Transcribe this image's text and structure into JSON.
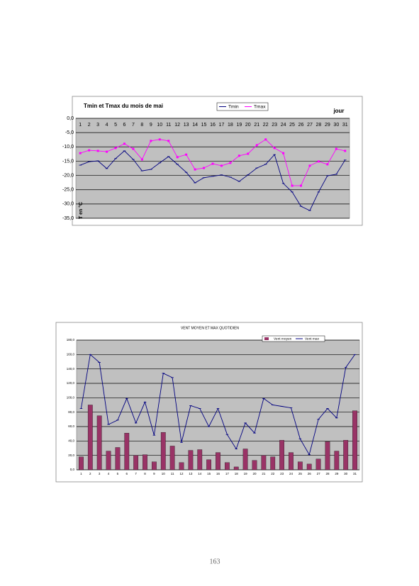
{
  "chart_data": [
    {
      "type": "line",
      "title": "Tmin et Tmax du mois de mai",
      "x_label": "jour",
      "y_label": "T en °C",
      "categories": [
        "1",
        "2",
        "3",
        "4",
        "5",
        "6",
        "7",
        "8",
        "9",
        "10",
        "11",
        "12",
        "13",
        "14",
        "15",
        "16",
        "17",
        "18",
        "19",
        "20",
        "21",
        "22",
        "23",
        "24",
        "25",
        "26",
        "27",
        "28",
        "29",
        "30",
        "31"
      ],
      "series": [
        {
          "name": "Tmin",
          "color": "#000080",
          "values": [
            -16.4,
            -15.2,
            -14.9,
            -17.6,
            -14.1,
            -11.4,
            -14.4,
            -18.4,
            -17.9,
            -15.6,
            -13.4,
            -16.1,
            -18.9,
            -22.6,
            -20.8,
            -20.3,
            -19.8,
            -20.6,
            -22.1,
            -19.8,
            -17.4,
            -16.1,
            -12.7,
            -22.8,
            -25.8,
            -30.8,
            -32.3,
            -25.8,
            -20.1,
            -19.6,
            -14.6
          ]
        },
        {
          "name": "Tmax",
          "color": "#ff00ff",
          "values": [
            -12.2,
            -11.2,
            -11.4,
            -11.7,
            -10.4,
            -8.9,
            -10.7,
            -14.4,
            -7.9,
            -7.4,
            -7.9,
            -13.6,
            -12.7,
            -17.9,
            -17.4,
            -15.9,
            -16.6,
            -15.6,
            -13.1,
            -12.4,
            -9.4,
            -7.4,
            -10.4,
            -12.2,
            -23.6,
            -23.6,
            -16.6,
            -15.1,
            -16.1,
            -10.7,
            -11.4
          ]
        }
      ],
      "ylim": [
        -35,
        0
      ],
      "yticks": [
        {
          "value": 0,
          "label": "0,0"
        },
        {
          "value": -5,
          "label": "-5,0"
        },
        {
          "value": -10,
          "label": "-10,0"
        },
        {
          "value": -15,
          "label": "-15,0"
        },
        {
          "value": -20,
          "label": "-20,0"
        },
        {
          "value": -25,
          "label": "-25,0"
        },
        {
          "value": -30,
          "label": "-30,0"
        },
        {
          "value": -35,
          "label": "-35,0"
        }
      ],
      "grid": true,
      "legend": "top"
    },
    {
      "type": "combo",
      "title": "VENT MOYEN ET MAX QUOTIDIEN",
      "categories": [
        "1",
        "2",
        "3",
        "4",
        "5",
        "6",
        "7",
        "8",
        "9",
        "10",
        "11",
        "12",
        "13",
        "14",
        "15",
        "16",
        "17",
        "18",
        "19",
        "20",
        "21",
        "22",
        "23",
        "24",
        "25",
        "26",
        "27",
        "28",
        "29",
        "30",
        "31"
      ],
      "series": [
        {
          "name": "Vent moyen",
          "type": "bar",
          "color": "#993366",
          "values": [
            18,
            90,
            75,
            26,
            31,
            51,
            20,
            21,
            11,
            52,
            33,
            10,
            27,
            28,
            14,
            24,
            10,
            4,
            29,
            13,
            20,
            18,
            41,
            24,
            11,
            8,
            15,
            39,
            26,
            41,
            82
          ]
        },
        {
          "name": "Vent max",
          "type": "line",
          "color": "#000080",
          "values": [
            85,
            160,
            149,
            63,
            69,
            99,
            65,
            94,
            48,
            134,
            128,
            38,
            89,
            85,
            60,
            85,
            49,
            29,
            65,
            51,
            99,
            90,
            88,
            86,
            43,
            21,
            70,
            85,
            72,
            142,
            160
          ]
        }
      ],
      "ylim": [
        0,
        180
      ],
      "yticks": [
        {
          "value": 0,
          "label": "0,0"
        },
        {
          "value": 20,
          "label": "20,0"
        },
        {
          "value": 40,
          "label": "40,0"
        },
        {
          "value": 60,
          "label": "60,0"
        },
        {
          "value": 80,
          "label": "80,0"
        },
        {
          "value": 100,
          "label": "100,0"
        },
        {
          "value": 120,
          "label": "120,0"
        },
        {
          "value": 140,
          "label": "140,0"
        },
        {
          "value": 160,
          "label": "160,0"
        },
        {
          "value": 180,
          "label": "180,0"
        }
      ],
      "grid": true,
      "legend": "top-right"
    }
  ],
  "page_number": "163"
}
